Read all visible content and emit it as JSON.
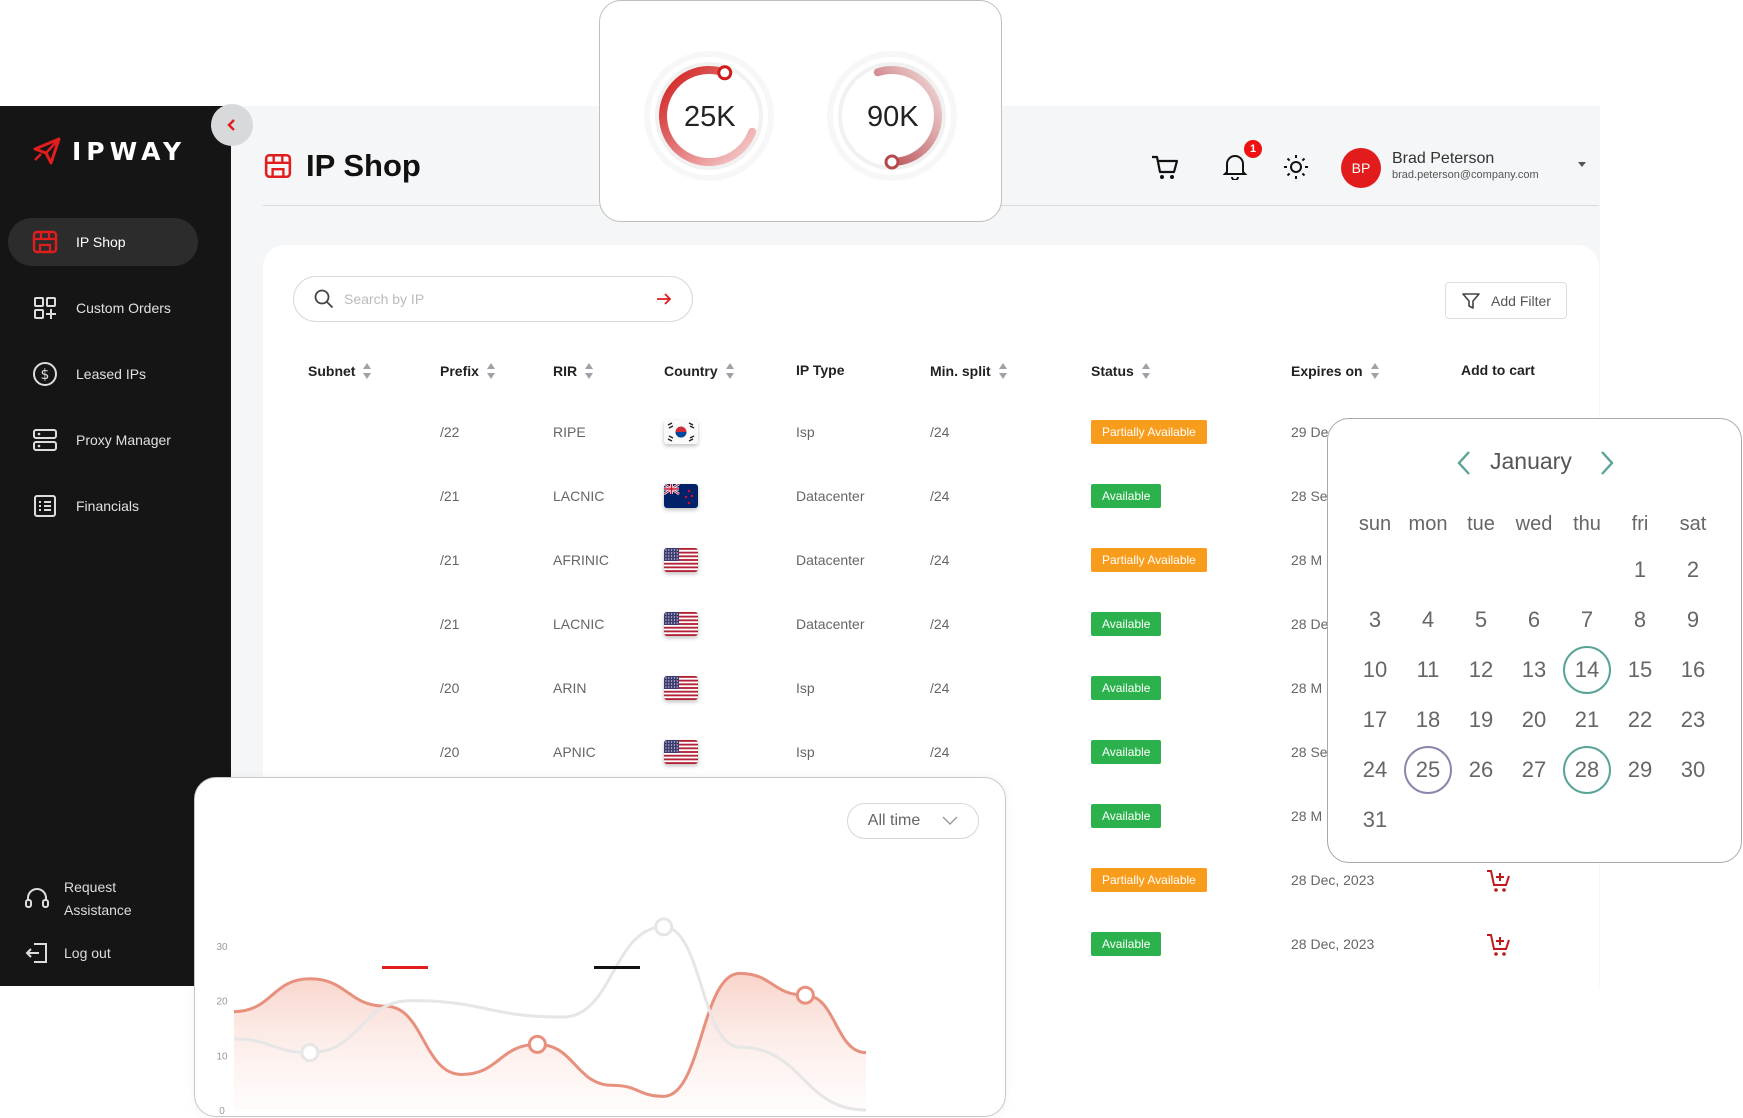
{
  "app": {
    "logo_text": "IPWAY",
    "page_title": "IP Shop"
  },
  "sidebar": {
    "items": [
      {
        "label": "IP Shop",
        "icon": "shop-icon",
        "active": true
      },
      {
        "label": "Custom Orders",
        "icon": "grid-plus-icon"
      },
      {
        "label": "Leased IPs",
        "icon": "dollar-circle-icon"
      },
      {
        "label": "Proxy Manager",
        "icon": "server-icon"
      },
      {
        "label": "Financials",
        "icon": "list-icon"
      }
    ],
    "request_assistance": "Request Assistance",
    "request_line1": "Request",
    "request_line2": "Assistance",
    "logout": "Log out"
  },
  "header": {
    "notification_count": "1",
    "user_initials": "BP",
    "user_name": "Brad Peterson",
    "user_email": "brad.peterson@company.com"
  },
  "search": {
    "placeholder": "Search by IP",
    "value": ""
  },
  "filter": {
    "label": "Add Filter"
  },
  "table": {
    "columns": [
      "Subnet",
      "Prefix",
      "RIR",
      "Country",
      "IP Type",
      "Min. split",
      "Status",
      "Expires on",
      "Add to cart"
    ],
    "rows": [
      {
        "prefix": "/22",
        "rir": "RIPE",
        "country": "KR",
        "ip_type": "Isp",
        "min_split": "/24",
        "status": "Partially Available",
        "expires": "29 De"
      },
      {
        "prefix": "/21",
        "rir": "LACNIC",
        "country": "NZ",
        "ip_type": "Datacenter",
        "min_split": "/24",
        "status": "Available",
        "expires": "28 Se"
      },
      {
        "prefix": "/21",
        "rir": "AFRINIC",
        "country": "US",
        "ip_type": "Datacenter",
        "min_split": "/24",
        "status": "Partially Available",
        "expires": "28 M"
      },
      {
        "prefix": "/21",
        "rir": "LACNIC",
        "country": "US",
        "ip_type": "Datacenter",
        "min_split": "/24",
        "status": "Available",
        "expires": "28 De"
      },
      {
        "prefix": "/20",
        "rir": "ARIN",
        "country": "US",
        "ip_type": "Isp",
        "min_split": "/24",
        "status": "Available",
        "expires": "28 M"
      },
      {
        "prefix": "/20",
        "rir": "APNIC",
        "country": "US",
        "ip_type": "Isp",
        "min_split": "/24",
        "status": "Available",
        "expires": "28 Se"
      },
      {
        "status": "Available",
        "expires": "28 M"
      },
      {
        "status": "Partially Available",
        "expires": "28 Dec, 2023"
      },
      {
        "status": "Available",
        "expires": "28 Dec, 2023"
      }
    ]
  },
  "gauges": [
    {
      "label": "25K",
      "fraction": 0.75
    },
    {
      "label": "90K",
      "fraction": 0.55
    }
  ],
  "chart": {
    "time_range": "All time",
    "y_ticks": [
      "30",
      "20",
      "10",
      "0"
    ]
  },
  "chart_data": {
    "type": "area",
    "title": "",
    "xlabel": "",
    "ylabel": "",
    "ylim": [
      0,
      30
    ],
    "series": [
      {
        "color": "#e8907e",
        "filled": true,
        "values": [
          18,
          24,
          19,
          6.5,
          12,
          4.5,
          2.5,
          25,
          21,
          10.5
        ],
        "x": [
          0,
          1.5,
          3,
          4.5,
          6,
          7.5,
          8.5,
          10,
          11.3,
          12.5
        ]
      },
      {
        "color": "#e6e6e6",
        "filled": false,
        "values": [
          13,
          10.5,
          20,
          17,
          33.5,
          11.5,
          0
        ],
        "x": [
          0,
          1.5,
          3.5,
          6.5,
          8.5,
          10,
          12.5
        ]
      }
    ],
    "legend_colors": [
      "#e11d1d",
      "#111111"
    ]
  },
  "calendar": {
    "month": "January",
    "days_of_week": [
      "sun",
      "mon",
      "tue",
      "wed",
      "thu",
      "fri",
      "sat"
    ],
    "first_weekday": 5,
    "num_days": 31,
    "highlight_teal": [
      14,
      28
    ],
    "highlight_purple": [
      25
    ]
  },
  "colors": {
    "brand": "#e11d1d",
    "available": "#2bb24c",
    "partial": "#f89c1c",
    "sidebar_bg": "#151515"
  }
}
